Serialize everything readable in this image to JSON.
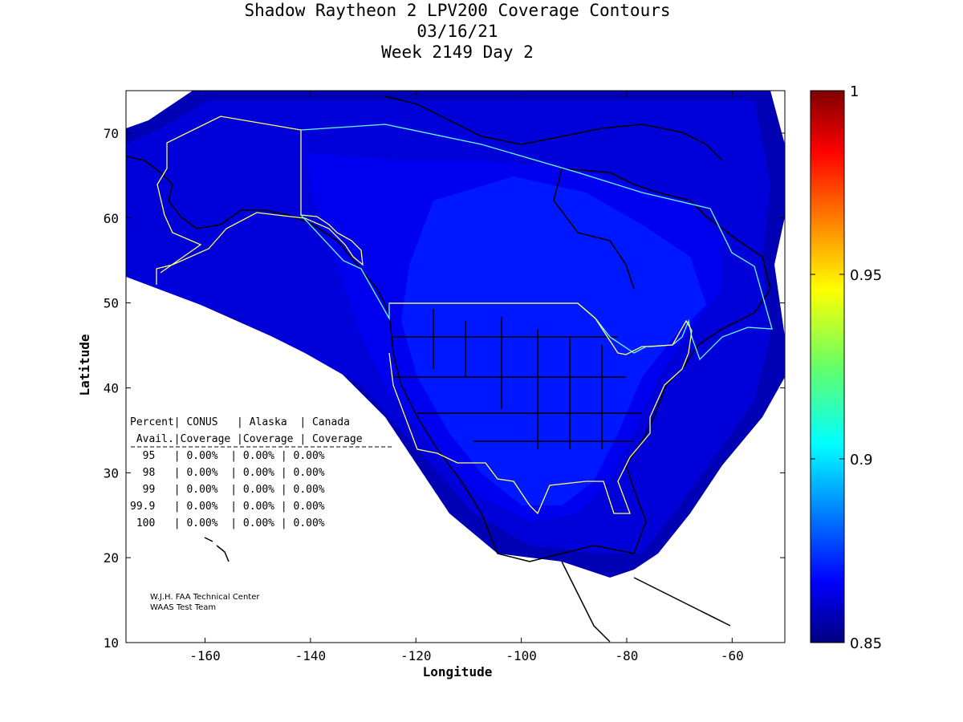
{
  "title": {
    "line1": "Shadow Raytheon 2 LPV200 Coverage Contours",
    "line2": "03/16/21",
    "line3": "Week 2149 Day 2"
  },
  "axes": {
    "xlabel": "Longitude",
    "ylabel": "Latitude",
    "xticks": [
      "-160",
      "-140",
      "-120",
      "-100",
      "-80",
      "-60"
    ],
    "yticks": [
      "70",
      "60",
      "50",
      "40",
      "30",
      "20",
      "10"
    ]
  },
  "colorbar": {
    "labels": [
      "1",
      "0.95",
      "0.9",
      "0.85"
    ]
  },
  "coverage_table": {
    "header1": "Percent| CONUS   | Alaska  | Canada",
    "header2": " Avail.|Coverage |Coverage | Coverage",
    "rows": [
      "  95   | 0.00%  | 0.00% | 0.00%",
      "  98   | 0.00%  | 0.00% | 0.00%",
      "  99   | 0.00%  | 0.00% | 0.00%",
      "99.9   | 0.00%  | 0.00% | 0.00%",
      " 100   | 0.00%  | 0.00% | 0.00%"
    ]
  },
  "credits": {
    "line1": "W.J.H. FAA Technical Center",
    "line2": "WAAS Test Team"
  },
  "colors": {
    "outer": "#0000b8",
    "mid": "#0000e0",
    "inner": "#0010ff",
    "coastline": "#000000",
    "service_volume": "#ffff66",
    "canada_volume": "#66ffff"
  }
}
